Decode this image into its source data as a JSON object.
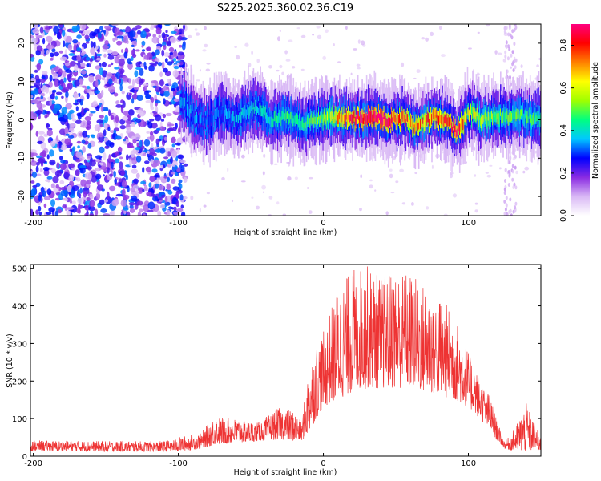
{
  "title": "S225.2025.360.02.36.C19",
  "chart_data": [
    {
      "type": "heatmap",
      "title": "S225.2025.360.02.36.C19",
      "xlabel": "Height of straight line (km)",
      "ylabel": "Frequency (Hz)",
      "xlim": [
        -202,
        150
      ],
      "ylim": [
        -25,
        25
      ],
      "x_ticks": [
        -200,
        -100,
        0,
        100
      ],
      "y_ticks": [
        -20,
        -10,
        0,
        10,
        20
      ],
      "colorbar": {
        "label": "Normalized spectral amplitude",
        "range": [
          0,
          0.9
        ],
        "ticks": [
          0.0,
          0.2,
          0.4,
          0.6,
          0.8
        ],
        "colors": [
          "#ffffff",
          "#d9b8f5",
          "#8a2be2",
          "#0000ff",
          "#00c8ff",
          "#00ff80",
          "#a0ff00",
          "#ffff00",
          "#ff8000",
          "#ff0000",
          "#ff0080"
        ]
      },
      "signal_band_center_hz": [
        {
          "x": -98,
          "f": 5
        },
        {
          "x": -90,
          "f": 1
        },
        {
          "x": -80,
          "f": -1
        },
        {
          "x": -70,
          "f": 2
        },
        {
          "x": -60,
          "f": 0
        },
        {
          "x": -50,
          "f": 3
        },
        {
          "x": -42,
          "f": 2
        },
        {
          "x": -35,
          "f": 0
        },
        {
          "x": -25,
          "f": 1
        },
        {
          "x": -15,
          "f": -1
        },
        {
          "x": -5,
          "f": 0
        },
        {
          "x": 5,
          "f": 1
        },
        {
          "x": 15,
          "f": 0.5
        },
        {
          "x": 25,
          "f": 0.5
        },
        {
          "x": 35,
          "f": 1
        },
        {
          "x": 45,
          "f": 0
        },
        {
          "x": 55,
          "f": 0.5
        },
        {
          "x": 65,
          "f": -2
        },
        {
          "x": 75,
          "f": 1
        },
        {
          "x": 85,
          "f": 0
        },
        {
          "x": 92,
          "f": -3
        },
        {
          "x": 100,
          "f": 2
        },
        {
          "x": 110,
          "f": 0
        },
        {
          "x": 120,
          "f": 1
        },
        {
          "x": 130,
          "f": 0.5
        },
        {
          "x": 140,
          "f": 1
        },
        {
          "x": 148,
          "f": 0
        }
      ],
      "signal_band_peak_amplitude": [
        {
          "x": -98,
          "a": 0.35
        },
        {
          "x": -80,
          "a": 0.3
        },
        {
          "x": -60,
          "a": 0.35
        },
        {
          "x": -40,
          "a": 0.4
        },
        {
          "x": -20,
          "a": 0.45
        },
        {
          "x": 0,
          "a": 0.5
        },
        {
          "x": 20,
          "a": 0.85
        },
        {
          "x": 40,
          "a": 0.9
        },
        {
          "x": 60,
          "a": 0.7
        },
        {
          "x": 80,
          "a": 0.75
        },
        {
          "x": 90,
          "a": 0.85
        },
        {
          "x": 100,
          "a": 0.6
        },
        {
          "x": 120,
          "a": 0.5
        },
        {
          "x": 148,
          "a": 0.45
        }
      ]
    },
    {
      "type": "line",
      "xlabel": "Height of straight line (km)",
      "ylabel": "SNR (10 * v/v)",
      "xlim": [
        -202,
        150
      ],
      "ylim": [
        0,
        510
      ],
      "x_ticks": [
        -200,
        -100,
        0,
        100
      ],
      "y_ticks": [
        0,
        100,
        200,
        300,
        400,
        500
      ],
      "series": [
        {
          "name": "SNR",
          "color": "#ee3333",
          "envelope": {
            "x": [
              -202,
              -150,
              -110,
              -95,
              -85,
              -75,
              -60,
              -45,
              -30,
              -20,
              -15,
              -10,
              -5,
              0,
              10,
              20,
              30,
              40,
              50,
              60,
              70,
              80,
              90,
              100,
              110,
              115,
              120,
              125,
              130,
              140,
              150
            ],
            "low": [
              15,
              12,
              12,
              15,
              20,
              30,
              35,
              40,
              45,
              40,
              40,
              60,
              100,
              130,
              150,
              170,
              180,
              180,
              180,
              180,
              170,
              160,
              150,
              130,
              90,
              70,
              40,
              20,
              15,
              12,
              15
            ],
            "high": [
              42,
              40,
              40,
              55,
              60,
              105,
              100,
              90,
              130,
              120,
              90,
              240,
              300,
              330,
              450,
              500,
              510,
              480,
              500,
              490,
              460,
              430,
              380,
              280,
              190,
              160,
              90,
              40,
              60,
              140,
              50
            ]
          }
        }
      ]
    }
  ]
}
